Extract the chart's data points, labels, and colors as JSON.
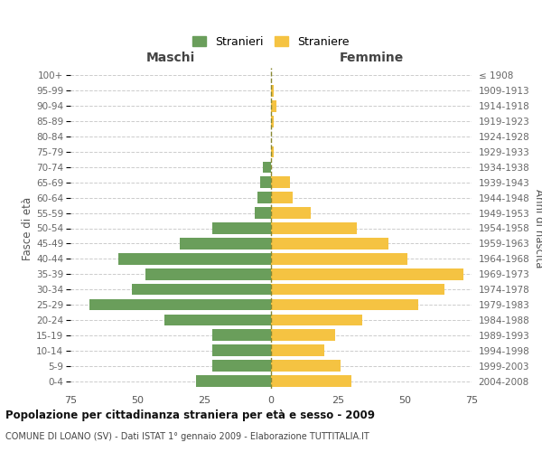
{
  "age_groups": [
    "100+",
    "95-99",
    "90-94",
    "85-89",
    "80-84",
    "75-79",
    "70-74",
    "65-69",
    "60-64",
    "55-59",
    "50-54",
    "45-49",
    "40-44",
    "35-39",
    "30-34",
    "25-29",
    "20-24",
    "15-19",
    "10-14",
    "5-9",
    "0-4"
  ],
  "birth_years": [
    "≤ 1908",
    "1909-1913",
    "1914-1918",
    "1919-1923",
    "1924-1928",
    "1929-1933",
    "1934-1938",
    "1939-1943",
    "1944-1948",
    "1949-1953",
    "1954-1958",
    "1959-1963",
    "1964-1968",
    "1969-1973",
    "1974-1978",
    "1979-1983",
    "1984-1988",
    "1989-1993",
    "1994-1998",
    "1999-2003",
    "2004-2008"
  ],
  "males": [
    0,
    0,
    0,
    0,
    0,
    0,
    3,
    4,
    5,
    6,
    22,
    34,
    57,
    47,
    52,
    68,
    40,
    22,
    22,
    22,
    28
  ],
  "females": [
    0,
    1,
    2,
    1,
    0,
    1,
    0,
    7,
    8,
    15,
    32,
    44,
    51,
    72,
    65,
    55,
    34,
    24,
    20,
    26,
    30
  ],
  "male_color": "#6a9e5b",
  "female_color": "#f5c342",
  "title1": "Popolazione per cittadinanza straniera per età e sesso - 2009",
  "title2": "COMUNE DI LOANO (SV) - Dati ISTAT 1° gennaio 2009 - Elaborazione TUTTITALIA.IT",
  "header_left": "Maschi",
  "header_right": "Femmine",
  "ylabel_left": "Fasce di età",
  "ylabel_right": "Anni di nascita",
  "legend_male": "Stranieri",
  "legend_female": "Straniere",
  "xlim": 75,
  "background_color": "#ffffff",
  "grid_color": "#cccccc"
}
